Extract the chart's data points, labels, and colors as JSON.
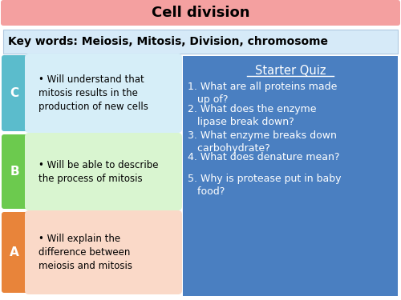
{
  "title": "Cell division",
  "title_bg": "#f4a0a0",
  "keywords_text": "Key words: Meiosis, Mitosis, Division, chromosome",
  "keywords_bg": "#d6eaf8",
  "bg_color": "#ffffff",
  "objectives": [
    {
      "grade": "C",
      "grade_color": "#5bbccc",
      "box_color": "#d6eef8",
      "text": "Will understand that\nmitosis results in the\nproduction of new cells"
    },
    {
      "grade": "B",
      "grade_color": "#6cca4e",
      "box_color": "#d9f5d0",
      "text": "Will be able to describe\nthe process of mitosis"
    },
    {
      "grade": "A",
      "grade_color": "#e8843a",
      "box_color": "#fad9c8",
      "text": "Will explain the\ndifference between\nmeiosis and mitosis"
    }
  ],
  "quiz_bg": "#4a7fc1",
  "quiz_title": "Starter Quiz",
  "quiz_items": [
    "What are all proteins made\n   up of?",
    "What does the enzyme\n   lipase break down?",
    "What enzyme breaks down\n   carbohydrate?",
    "What does denature mean?",
    "Why is protease put in baby\n   food?"
  ]
}
